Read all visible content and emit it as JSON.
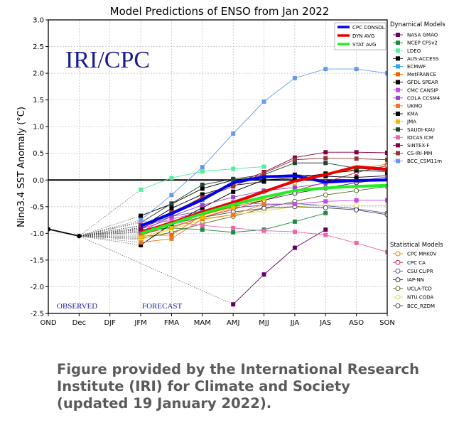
{
  "chart_data": {
    "type": "line",
    "title": "Model Predictions of ENSO from Jan 2022",
    "ylabel": "Nino3.4 SST Anomaly (°C)",
    "xlabel": "",
    "ylim": [
      -2.5,
      3.0
    ],
    "yticks": [
      -2.5,
      -2.0,
      -1.5,
      -1.0,
      -0.5,
      0.0,
      0.5,
      1.0,
      1.5,
      2.0,
      2.5,
      3.0
    ],
    "ytick_labels": [
      "-2.5",
      "-2.0",
      "-1.5",
      "-1.0",
      "-0.5",
      "0.0",
      "0.5",
      "1.0",
      "1.5",
      "2.0",
      "2.5",
      "3.0"
    ],
    "categories": [
      "OND",
      "Dec",
      "DJF",
      "JFM",
      "FMA",
      "MAM",
      "AMJ",
      "MJJ",
      "JJA",
      "JAS",
      "ASO",
      "SON"
    ],
    "grid": true,
    "watermark": "IRI/CPC",
    "observed_label": "OBSERVED",
    "forecast_label": "FORECAST",
    "observed": [
      {
        "x": 0,
        "y": -0.92
      },
      {
        "x": 1,
        "y": -1.05
      }
    ],
    "legend_top": [
      {
        "name": "CPC CONSOL",
        "color": "#0000ee"
      },
      {
        "name": "DYN AVG",
        "color": "#ee0000"
      },
      {
        "name": "STAT AVG",
        "color": "#22ee22"
      }
    ],
    "dynamical_title": "Dynamical Models",
    "statistical_title": "Statistical Models",
    "dynamical_models": [
      {
        "name": "NASA GMAO",
        "color": "#660066",
        "start": 6,
        "values": [
          -2.33,
          -1.77,
          -1.27,
          -0.93
        ]
      },
      {
        "name": "NCEP CFSv2",
        "color": "#228844",
        "start": 3,
        "values": [
          -0.93,
          -0.9,
          -0.93,
          -0.98,
          -0.93,
          -0.78,
          -0.62
        ]
      },
      {
        "name": "LDEO",
        "color": "#55ee99",
        "start": 3,
        "values": [
          -0.18,
          0.04,
          0.16,
          0.21,
          0.25
        ]
      },
      {
        "name": "AUS-ACCESS",
        "color": "#000000",
        "start": 3,
        "values": [
          -0.67,
          -0.45,
          -0.16,
          0.0,
          0.07,
          0.1,
          0.07,
          0.05,
          0.08
        ]
      },
      {
        "name": "ECMWF",
        "color": "#22aaee",
        "start": 3,
        "values": [
          -0.86,
          -0.65,
          -0.37,
          -0.02,
          0.05
        ]
      },
      {
        "name": "MetFRANCE",
        "color": "#ee6600",
        "start": 3,
        "values": [
          -1.05,
          -1.03,
          -0.66,
          -0.5,
          -0.2
        ]
      },
      {
        "name": "GFDL SPEAR",
        "color": "#000000",
        "start": 3,
        "values": [
          -1.22,
          -0.82,
          -0.52,
          -0.22,
          0.0,
          0.04,
          0.12,
          0.18,
          0.16
        ]
      },
      {
        "name": "CMC CANSIP",
        "color": "#cc44ee",
        "start": 3,
        "values": [
          -0.92,
          -0.73,
          -0.6,
          -0.42,
          -0.45,
          -0.45,
          -0.4,
          -0.38,
          -0.38
        ]
      },
      {
        "name": "COLA CCSM4",
        "color": "#9944cc",
        "start": 3,
        "values": [
          -0.97,
          -0.68,
          -0.47,
          -0.32,
          -0.2,
          -0.14,
          -0.06,
          -0.02,
          0.06
        ]
      },
      {
        "name": "UKMO",
        "color": "#ee7722",
        "start": 3,
        "values": [
          -1.17,
          -1.1,
          -0.73,
          -0.65,
          -0.45
        ]
      },
      {
        "name": "KMA",
        "color": "#000000",
        "start": 3,
        "values": [
          -0.89,
          -0.53,
          -0.27,
          -0.1,
          -0.03
        ]
      },
      {
        "name": "JMA",
        "color": "#eebb00",
        "start": 3,
        "values": [
          -1.08,
          -0.9,
          -0.7,
          -0.52,
          -0.35
        ]
      },
      {
        "name": "SAUDI-KAU",
        "color": "#224433",
        "start": 3,
        "values": [
          -0.8,
          -0.44,
          -0.09,
          0.02,
          0.1,
          0.32,
          0.32,
          0.22,
          0.18
        ]
      },
      {
        "name": "IOCAS ICM",
        "color": "#ee66aa",
        "start": 3,
        "values": [
          -0.78,
          -0.78,
          -0.85,
          -0.9,
          -0.95,
          -0.97,
          -1.03,
          -1.18,
          -1.35
        ]
      },
      {
        "name": "SINTEX-F",
        "color": "#880044",
        "start": 3,
        "values": [
          -0.92,
          -0.62,
          -0.32,
          -0.08,
          0.15,
          0.42,
          0.52,
          0.52,
          0.51
        ]
      },
      {
        "name": "CS-IRI-MM",
        "color": "#993333",
        "start": 3,
        "values": [
          -0.85,
          -0.6,
          -0.34,
          -0.12,
          0.13,
          0.38,
          0.41,
          0.4,
          0.38
        ]
      },
      {
        "name": "BCC_CSM11m",
        "color": "#6699ee",
        "start": 3,
        "values": [
          -0.75,
          -0.28,
          0.24,
          0.87,
          1.47,
          1.91,
          2.08,
          2.08,
          2.0
        ]
      }
    ],
    "statistical_models": [
      {
        "name": "CPC MRKOV",
        "color": "#ee8800",
        "start": 3,
        "values": [
          -1.05,
          -0.82,
          -0.62,
          -0.42,
          -0.22,
          -0.05,
          0.1,
          0.2,
          0.3
        ]
      },
      {
        "name": "CPC CA",
        "color": "#cc2244",
        "start": 3,
        "values": [
          -1.02,
          -0.88,
          -0.7,
          -0.55,
          -0.38,
          -0.2,
          -0.04,
          0.14,
          0.27
        ]
      },
      {
        "name": "CSU CLIPR",
        "color": "#5555aa",
        "start": 3,
        "values": [
          -0.9,
          -0.68,
          -0.58,
          -0.52,
          -0.47,
          -0.44,
          -0.48,
          -0.54,
          -0.62
        ]
      },
      {
        "name": "IAP-NN",
        "color": "#333333",
        "start": 3,
        "values": [
          -0.95,
          -0.8,
          -0.65,
          -0.5,
          -0.38,
          -0.25,
          -0.15,
          -0.05,
          0.02
        ]
      },
      {
        "name": "UCLA-TCD",
        "color": "#556622",
        "start": 3,
        "values": [
          -1.1,
          -0.98,
          -0.82,
          -0.68,
          -0.53,
          -0.4,
          -0.28,
          -0.2,
          -0.12
        ]
      },
      {
        "name": "NTU CODA",
        "color": "#dddd44",
        "start": 3,
        "values": [
          -1.12,
          -0.92,
          -0.75,
          -0.65,
          -0.58,
          -0.5,
          -0.47,
          -0.48,
          -0.48
        ]
      },
      {
        "name": "BCC_RZDM",
        "color": "#444444",
        "start": 3,
        "values": [
          -0.98,
          -0.82,
          -0.7,
          -0.6,
          -0.53,
          -0.5,
          -0.52,
          -0.56,
          -0.65
        ]
      }
    ],
    "averages": [
      {
        "name": "CPC CONSOL",
        "color": "#0000ee",
        "start": 3,
        "values": [
          -0.86,
          -0.63,
          -0.37,
          -0.05,
          0.06,
          0.08,
          -0.04,
          -0.01,
          0.0
        ]
      },
      {
        "name": "DYN AVG",
        "color": "#ee0000",
        "start": 3,
        "values": [
          -0.98,
          -0.8,
          -0.6,
          -0.42,
          -0.22,
          -0.02,
          0.1,
          0.25,
          0.2
        ]
      },
      {
        "name": "STAT AVG",
        "color": "#22ee22",
        "start": 3,
        "values": [
          -1.0,
          -0.82,
          -0.63,
          -0.46,
          -0.32,
          -0.2,
          -0.15,
          -0.12,
          -0.1
        ]
      }
    ]
  },
  "caption": {
    "line1": "Figure provided by the International Research",
    "line2": "Institute (IRI) for Climate and Society",
    "line3": "(updated 19 January 2022)."
  }
}
